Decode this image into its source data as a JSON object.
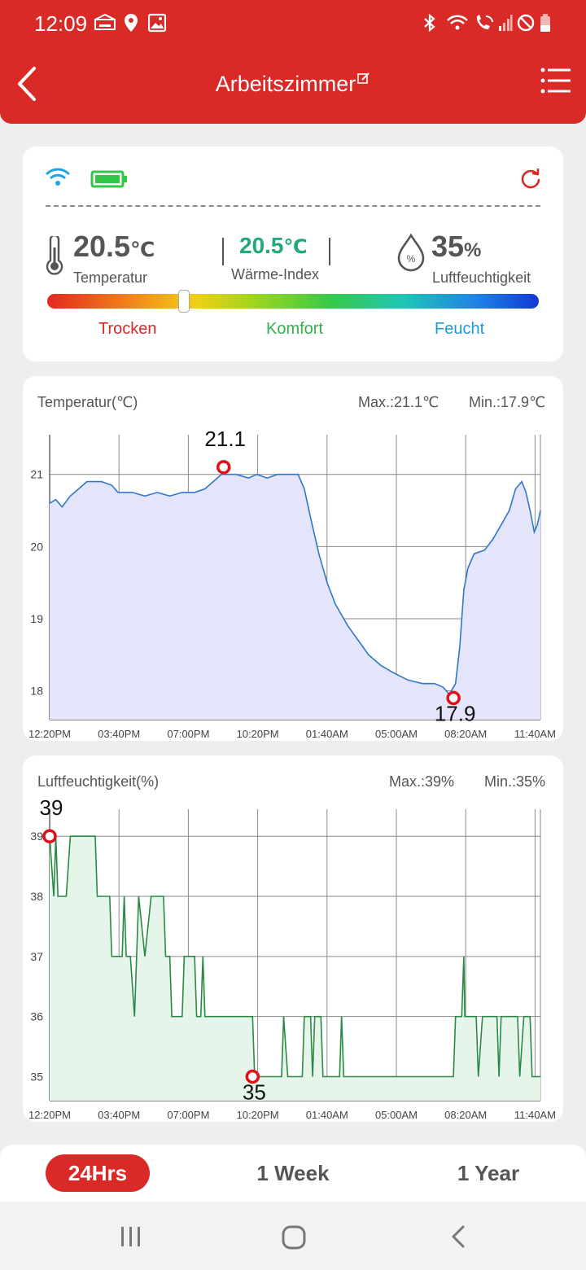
{
  "status_bar": {
    "time": "12:09",
    "icons_left": [
      "app-notification-icon",
      "location-icon",
      "gallery-icon"
    ],
    "icons_right": [
      "bluetooth-icon",
      "wifi-icon",
      "wifi-call-icon",
      "signal-icon",
      "do-not-disturb-icon",
      "battery-low-icon"
    ]
  },
  "header": {
    "title": "Arbeitszimmer",
    "back_icon": "chevron-left-icon",
    "edit_icon": "edit-icon",
    "menu_icon": "menu-list-icon",
    "color": "#d92a27"
  },
  "summary": {
    "temperature": {
      "value": "20.5",
      "unit": "℃",
      "label": "Temperatur"
    },
    "heat_index": {
      "value": "20.5",
      "unit": "℃",
      "label": "Wärme-Index",
      "color": "#21a77a"
    },
    "humidity": {
      "value": "35",
      "unit": "%",
      "label": "Luftfeuchtigkeit"
    },
    "comfort_slider_level": 0.28,
    "zones": [
      {
        "label": "Trocken",
        "color": "#d92a27"
      },
      {
        "label": "Komfort",
        "color": "#2fb34a"
      },
      {
        "label": "Feucht",
        "color": "#1f9ad6"
      }
    ]
  },
  "range_tabs": [
    {
      "label": "24Hrs",
      "active": true
    },
    {
      "label": "1 Week",
      "active": false
    },
    {
      "label": "1 Year",
      "active": false
    }
  ],
  "chart_data": [
    {
      "type": "line",
      "title": "Temperatur(℃)",
      "max_label": "Max.:21.1℃",
      "min_label": "Min.:17.9℃",
      "color": "#2f78c8",
      "fill": "#e4e4fb",
      "x_ticks": [
        "12:20PM",
        "03:40PM",
        "07:00PM",
        "10:20PM",
        "01:40AM",
        "05:00AM",
        "08:20AM",
        "11:40AM"
      ],
      "y_ticks": [
        21,
        20,
        19,
        18
      ],
      "ylim": [
        17.6,
        21.55
      ],
      "x_hours": [
        0,
        23.7
      ],
      "max_marker": {
        "x": 8.4,
        "y": 21.1,
        "label": "21.1"
      },
      "min_marker": {
        "x": 19.5,
        "y": 17.9,
        "label": "17.9"
      },
      "points": [
        [
          0,
          20.6
        ],
        [
          0.3,
          20.65
        ],
        [
          0.6,
          20.55
        ],
        [
          1,
          20.7
        ],
        [
          1.4,
          20.8
        ],
        [
          1.8,
          20.9
        ],
        [
          2.5,
          20.9
        ],
        [
          3,
          20.85
        ],
        [
          3.3,
          20.75
        ],
        [
          4,
          20.75
        ],
        [
          4.6,
          20.7
        ],
        [
          5.2,
          20.75
        ],
        [
          5.8,
          20.7
        ],
        [
          6.4,
          20.75
        ],
        [
          7,
          20.75
        ],
        [
          7.5,
          20.8
        ],
        [
          7.9,
          20.9
        ],
        [
          8.3,
          21.0
        ],
        [
          9,
          21.0
        ],
        [
          9.6,
          20.95
        ],
        [
          10,
          21.0
        ],
        [
          10.5,
          20.95
        ],
        [
          11,
          21.0
        ],
        [
          12,
          21.0
        ],
        [
          12.3,
          20.8
        ],
        [
          12.6,
          20.4
        ],
        [
          13,
          19.9
        ],
        [
          13.4,
          19.5
        ],
        [
          13.8,
          19.2
        ],
        [
          14.4,
          18.9
        ],
        [
          14.9,
          18.7
        ],
        [
          15.4,
          18.5
        ],
        [
          16,
          18.35
        ],
        [
          16.6,
          18.25
        ],
        [
          17.3,
          18.15
        ],
        [
          18,
          18.1
        ],
        [
          18.6,
          18.1
        ],
        [
          19,
          18.05
        ],
        [
          19.3,
          17.95
        ],
        [
          19.6,
          18.1
        ],
        [
          19.8,
          18.6
        ],
        [
          20,
          19.4
        ],
        [
          20.2,
          19.7
        ],
        [
          20.5,
          19.9
        ],
        [
          21,
          19.95
        ],
        [
          21.4,
          20.1
        ],
        [
          21.8,
          20.3
        ],
        [
          22.2,
          20.5
        ],
        [
          22.5,
          20.8
        ],
        [
          22.8,
          20.9
        ],
        [
          23.0,
          20.75
        ],
        [
          23.2,
          20.5
        ],
        [
          23.4,
          20.2
        ],
        [
          23.55,
          20.3
        ],
        [
          23.7,
          20.5
        ]
      ]
    },
    {
      "type": "line",
      "title": "Luftfeuchtigkeit(%)",
      "max_label": "Max.:39%",
      "min_label": "Min.:35%",
      "color": "#2a8a45",
      "fill": "#e6f5ea",
      "x_ticks": [
        "12:20PM",
        "03:40PM",
        "07:00PM",
        "10:20PM",
        "01:40AM",
        "05:00AM",
        "08:20AM",
        "11:40AM"
      ],
      "y_ticks": [
        39,
        38,
        37,
        36,
        35
      ],
      "ylim": [
        34.6,
        39.45
      ],
      "x_hours": [
        0,
        23.7
      ],
      "max_marker": {
        "x": 0,
        "y": 39,
        "label": "39"
      },
      "min_marker": {
        "x": 9.8,
        "y": 35,
        "label": "35"
      },
      "points": [
        [
          0,
          39
        ],
        [
          0.2,
          38
        ],
        [
          0.3,
          39
        ],
        [
          0.4,
          38
        ],
        [
          0.8,
          38
        ],
        [
          1,
          39
        ],
        [
          2.2,
          39
        ],
        [
          2.3,
          38
        ],
        [
          2.9,
          38
        ],
        [
          3.0,
          37
        ],
        [
          3.5,
          37
        ],
        [
          3.6,
          38
        ],
        [
          3.7,
          37
        ],
        [
          3.9,
          37
        ],
        [
          4.1,
          36
        ],
        [
          4.3,
          38
        ],
        [
          4.6,
          37
        ],
        [
          4.9,
          38
        ],
        [
          5.5,
          38
        ],
        [
          5.6,
          37
        ],
        [
          5.8,
          37
        ],
        [
          5.9,
          36
        ],
        [
          6.4,
          36
        ],
        [
          6.5,
          37
        ],
        [
          7.0,
          37
        ],
        [
          7.1,
          36
        ],
        [
          7.3,
          36
        ],
        [
          7.4,
          37
        ],
        [
          7.5,
          36
        ],
        [
          9.8,
          36
        ],
        [
          9.9,
          35
        ],
        [
          11.2,
          35
        ],
        [
          11.3,
          36
        ],
        [
          11.5,
          35
        ],
        [
          12.2,
          35
        ],
        [
          12.3,
          36
        ],
        [
          12.6,
          36
        ],
        [
          12.7,
          35
        ],
        [
          12.8,
          36
        ],
        [
          13.1,
          36
        ],
        [
          13.2,
          35
        ],
        [
          14.0,
          35
        ],
        [
          14.1,
          36
        ],
        [
          14.2,
          35
        ],
        [
          19.5,
          35
        ],
        [
          19.6,
          36
        ],
        [
          19.9,
          36
        ],
        [
          20.0,
          37
        ],
        [
          20.05,
          36
        ],
        [
          20.6,
          36
        ],
        [
          20.7,
          35
        ],
        [
          20.9,
          36
        ],
        [
          21.6,
          36
        ],
        [
          21.7,
          35
        ],
        [
          21.8,
          36
        ],
        [
          22.6,
          36
        ],
        [
          22.7,
          35
        ],
        [
          22.9,
          36
        ],
        [
          23.2,
          36
        ],
        [
          23.3,
          35
        ],
        [
          23.7,
          35
        ]
      ]
    }
  ]
}
